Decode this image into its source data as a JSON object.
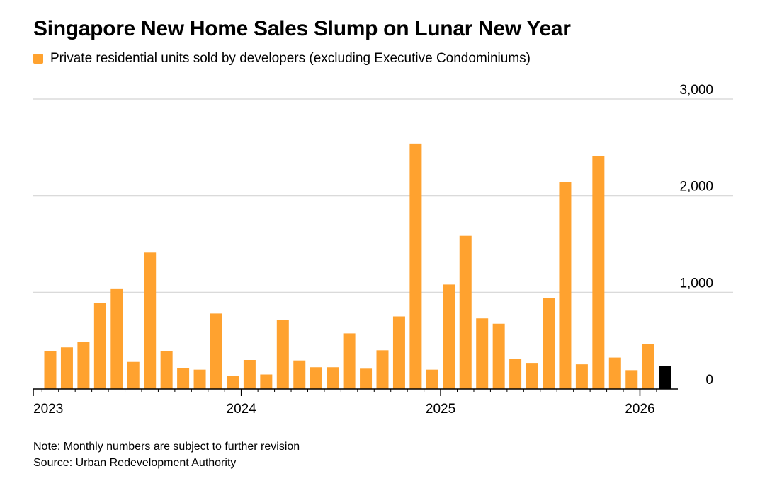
{
  "title": "Singapore New Home Sales Slump on Lunar New Year",
  "legend": {
    "label": "Private residential units sold by developers (excluding Executive Condominiums)"
  },
  "colors": {
    "bar": "#ffa22f",
    "highlight": "#000000",
    "grid": "#d4d4d4",
    "axis": "#000000"
  },
  "chart_data": {
    "type": "bar",
    "title": "Singapore New Home Sales Slump on Lunar New Year",
    "series_name": "Private residential units sold by developers (excluding Executive Condominiums)",
    "xlabel": "",
    "ylabel": "",
    "ylim": [
      0,
      3000
    ],
    "yticks": [
      0,
      1000,
      2000,
      3000
    ],
    "ytick_labels": [
      "0",
      "1,000",
      "2,000",
      "3,000"
    ],
    "xtick_labels": [
      {
        "label": "2023",
        "index": 0
      },
      {
        "label": "2024",
        "index": 12
      },
      {
        "label": "2025",
        "index": 24
      },
      {
        "label": "2026",
        "index": 36
      }
    ],
    "grid": true,
    "highlight_index": 37,
    "categories": [
      "Jan 2023",
      "Feb 2023",
      "Mar 2023",
      "Apr 2023",
      "May 2023",
      "Jun 2023",
      "Jul 2023",
      "Aug 2023",
      "Sep 2023",
      "Oct 2023",
      "Nov 2023",
      "Dec 2023",
      "Jan 2024",
      "Feb 2024",
      "Mar 2024",
      "Apr 2024",
      "May 2024",
      "Jun 2024",
      "Jul 2024",
      "Aug 2024",
      "Sep 2024",
      "Oct 2024",
      "Nov 2024",
      "Dec 2024",
      "Jan 2025",
      "Feb 2025",
      "Mar 2025",
      "Apr 2025",
      "May 2025",
      "Jun 2025",
      "Jul 2025",
      "Aug 2025",
      "Sep 2025",
      "Oct 2025",
      "Nov 2025",
      "Dec 2025",
      "Jan 2026",
      "Feb 2026"
    ],
    "values": [
      390,
      430,
      490,
      890,
      1040,
      280,
      1410,
      390,
      215,
      200,
      780,
      135,
      300,
      150,
      715,
      295,
      225,
      225,
      575,
      210,
      400,
      750,
      2540,
      200,
      1080,
      1590,
      730,
      675,
      310,
      270,
      940,
      2140,
      255,
      2410,
      325,
      195,
      465,
      240
    ]
  },
  "footnotes": {
    "note": "Note: Monthly numbers are subject to further revision",
    "source": "Source: Urban Redevelopment Authority"
  }
}
